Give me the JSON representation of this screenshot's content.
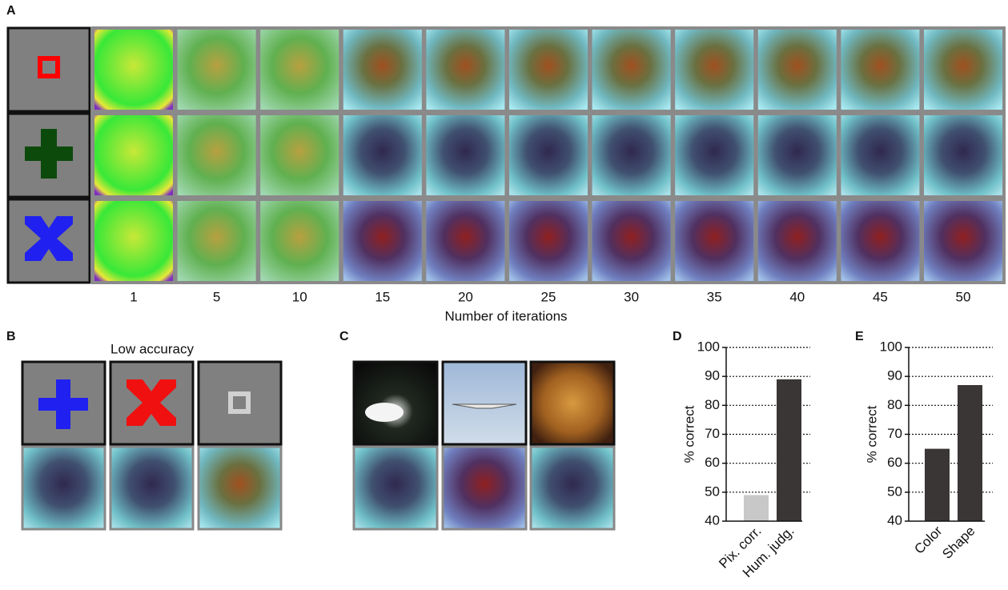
{
  "panel_a": {
    "label": "A",
    "iterations": [
      1,
      5,
      10,
      15,
      20,
      25,
      30,
      35,
      40,
      45,
      50
    ],
    "x_label": "Number of iterations"
  },
  "panel_b": {
    "label": "B",
    "title": "Low accuracy"
  },
  "panel_c": {
    "label": "C"
  },
  "chart_data": [
    {
      "type": "bar",
      "panel": "D",
      "y_label": "% correct",
      "categories": [
        "Pix. corr.",
        "Hum. judg."
      ],
      "values": [
        49,
        89
      ],
      "colors": [
        "#c8c8c8",
        "#3a3636"
      ],
      "ylim": [
        40,
        100
      ],
      "yticks": [
        40,
        50,
        60,
        70,
        80,
        90,
        100
      ],
      "grid": true
    },
    {
      "type": "bar",
      "panel": "E",
      "y_label": "% correct",
      "categories": [
        "Color",
        "Shape"
      ],
      "values": [
        65,
        87
      ],
      "colors": [
        "#3a3636",
        "#3a3636"
      ],
      "ylim": [
        40,
        100
      ],
      "yticks": [
        40,
        50,
        60,
        70,
        80,
        90,
        100
      ],
      "grid": true
    }
  ]
}
